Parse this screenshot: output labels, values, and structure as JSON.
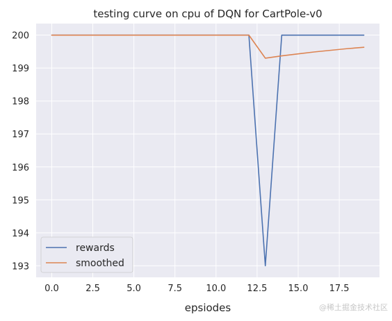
{
  "chart_data": {
    "type": "line",
    "title": "testing curve on cpu of DQN for CartPole-v0",
    "xlabel": "epsiodes",
    "ylabel": "",
    "xlim": [
      -0.95,
      19.95
    ],
    "ylim": [
      192.65,
      200.35
    ],
    "xticks": [
      0,
      2.5,
      5,
      7.5,
      10,
      12.5,
      15,
      17.5
    ],
    "xtick_labels": [
      "0.0",
      "2.5",
      "5.0",
      "7.5",
      "10.0",
      "12.5",
      "15.0",
      "17.5"
    ],
    "yticks": [
      193,
      194,
      195,
      196,
      197,
      198,
      199,
      200
    ],
    "ytick_labels": [
      "193",
      "194",
      "195",
      "196",
      "197",
      "198",
      "199",
      "200"
    ],
    "grid": true,
    "legend_position": "lower-left",
    "x": [
      0,
      1,
      2,
      3,
      4,
      5,
      6,
      7,
      8,
      9,
      10,
      11,
      12,
      13,
      14,
      15,
      16,
      17,
      18,
      19
    ],
    "series": [
      {
        "name": "rewards",
        "color": "#4c72b0",
        "values": [
          200,
          200,
          200,
          200,
          200,
          200,
          200,
          200,
          200,
          200,
          200,
          200,
          200,
          193,
          200,
          200,
          200,
          200,
          200,
          200
        ]
      },
      {
        "name": "smoothed",
        "color": "#dd8452",
        "values": [
          200,
          200,
          200,
          200,
          200,
          200,
          200,
          200,
          200,
          200,
          200,
          200,
          200,
          199.3,
          199.37,
          199.43,
          199.49,
          199.54,
          199.59,
          199.63
        ]
      }
    ]
  },
  "watermark": "@稀土掘金技术社区",
  "colors": {
    "plot_background": "#eaeaf2",
    "grid": "#ffffff",
    "text": "#262626"
  }
}
